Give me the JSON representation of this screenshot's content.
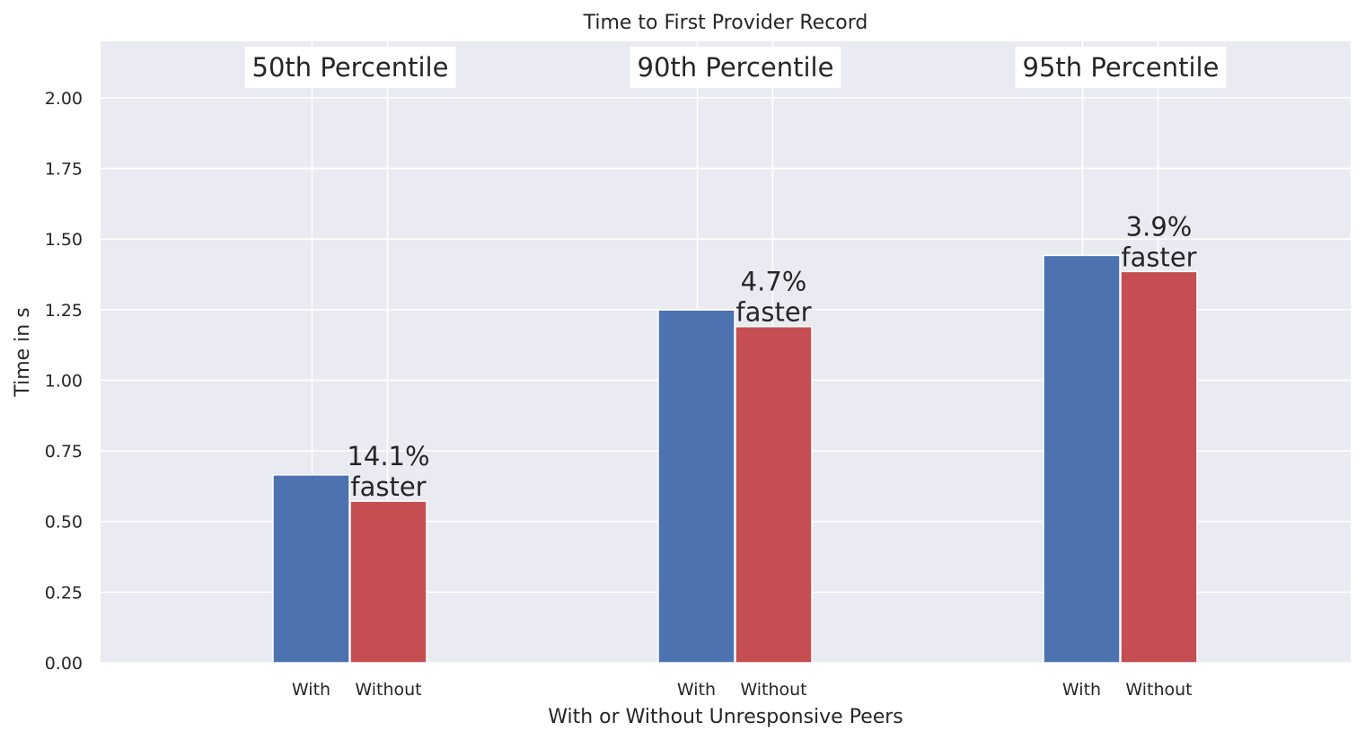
{
  "chart_data": {
    "type": "bar",
    "title": "Time to First Provider Record",
    "xlabel": "With or Without Unresponsive Peers",
    "ylabel": "Time in s",
    "ylim": [
      0,
      2.2
    ],
    "yticks": [
      "0.00",
      "0.25",
      "0.50",
      "0.75",
      "1.00",
      "1.25",
      "1.50",
      "1.75",
      "2.00"
    ],
    "grid": true,
    "groups": [
      {
        "label": "50th Percentile",
        "bars": [
          {
            "label": "With",
            "value": 0.665,
            "color": "#4c72b0"
          },
          {
            "label": "Without",
            "value": 0.572,
            "color": "#c44e52"
          }
        ],
        "annotation": [
          "14.1%",
          "faster"
        ]
      },
      {
        "label": "90th Percentile",
        "bars": [
          {
            "label": "With",
            "value": 1.249,
            "color": "#4c72b0"
          },
          {
            "label": "Without",
            "value": 1.19,
            "color": "#c44e52"
          }
        ],
        "annotation": [
          "4.7%",
          "faster"
        ]
      },
      {
        "label": "95th Percentile",
        "bars": [
          {
            "label": "With",
            "value": 1.442,
            "color": "#4c72b0"
          },
          {
            "label": "Without",
            "value": 1.385,
            "color": "#c44e52"
          }
        ],
        "annotation": [
          "3.9%",
          "faster"
        ]
      }
    ]
  }
}
